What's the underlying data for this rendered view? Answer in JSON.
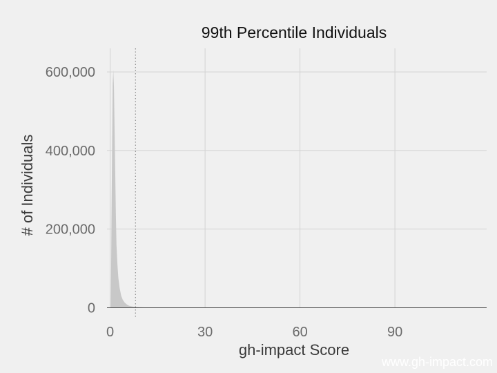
{
  "chart_data": {
    "type": "area",
    "title": "99th Percentile Individuals",
    "xlabel": "gh-impact Score",
    "ylabel": "# of Individuals",
    "xlim": [
      -1,
      119
    ],
    "ylim": [
      -8000,
      660000
    ],
    "x_ticks": [
      0,
      30,
      60,
      90
    ],
    "x_tick_labels": [
      "0",
      "30",
      "60",
      "90"
    ],
    "y_ticks": [
      0,
      200000,
      400000,
      600000
    ],
    "y_tick_labels": [
      "0",
      "200,000",
      "400,000",
      "600,000"
    ],
    "grid": true,
    "fill_color": "#c8c8c8",
    "reference_line": {
      "x": 8,
      "style": "dotted"
    },
    "series": [
      {
        "x": [
          0.2,
          0.5,
          0.8,
          1.0,
          1.2,
          1.5,
          1.8,
          2.0,
          2.3,
          2.6,
          3.0,
          3.5,
          4.0,
          4.5,
          5.0,
          5.5,
          6.0,
          7.0,
          8.0,
          9.0,
          10.0,
          12.0,
          15.0,
          20.0,
          30.0,
          50.0,
          118.0
        ],
        "y": [
          0,
          300000,
          570000,
          605000,
          560000,
          400000,
          240000,
          160000,
          110000,
          75000,
          50000,
          30000,
          20000,
          14000,
          10000,
          7000,
          5000,
          3200,
          2200,
          1500,
          1000,
          600,
          300,
          150,
          60,
          20,
          0
        ]
      }
    ]
  },
  "watermark": "www.gh-impact.com"
}
